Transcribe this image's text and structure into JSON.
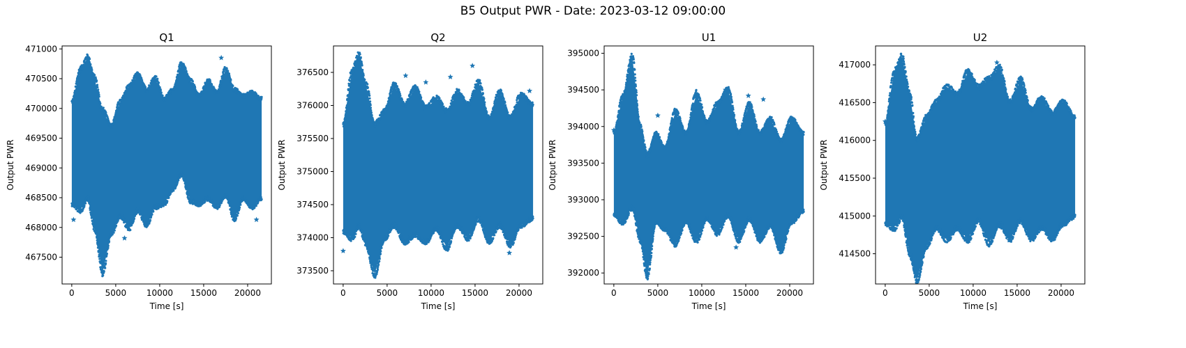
{
  "figure": {
    "title": "B5 Output PWR - Date: 2023-03-12 09:00:00"
  },
  "colors": {
    "series": "#1f77b4",
    "axes": "#000000",
    "background": "#ffffff"
  },
  "chart_data": [
    {
      "type": "scatter",
      "marker": "star",
      "title": "Q1",
      "xlabel": "Time [s]",
      "ylabel": "Output PWR",
      "xlim": [
        -1100,
        22700
      ],
      "ylim": [
        467050,
        471050
      ],
      "xticks": [
        0,
        5000,
        10000,
        15000,
        20000
      ],
      "yticks": [
        467500,
        468000,
        468500,
        469000,
        469500,
        470000,
        470500,
        471000
      ],
      "ytick_labels": [
        "467500",
        "468000",
        "468500",
        "469000",
        "469500",
        "470000",
        "470500",
        "471000"
      ],
      "xtick_labels": [
        "0",
        "5000",
        "10000",
        "15000",
        "20000"
      ],
      "envelope": {
        "x": [
          0,
          1000,
          1800,
          2600,
          3500,
          4500,
          5500,
          6500,
          7500,
          8500,
          9500,
          10500,
          11500,
          12500,
          13500,
          14500,
          15500,
          16500,
          17500,
          18500,
          19500,
          20500,
          21600
        ],
        "upper": [
          470100,
          470650,
          470850,
          470500,
          469950,
          469700,
          470100,
          470350,
          470550,
          470300,
          470500,
          470150,
          470300,
          470750,
          470450,
          470200,
          470450,
          470250,
          470650,
          470300,
          470200,
          470250,
          470150
        ],
        "lower": [
          468400,
          468300,
          468500,
          468000,
          467250,
          467900,
          468200,
          468000,
          468300,
          468050,
          468350,
          468400,
          468650,
          468900,
          468450,
          468400,
          468500,
          468350,
          468550,
          468150,
          468500,
          468350,
          468500
        ]
      },
      "outliers": [
        [
          200,
          468130
        ],
        [
          17000,
          470850
        ],
        [
          6000,
          467820
        ],
        [
          21000,
          468130
        ]
      ]
    },
    {
      "type": "scatter",
      "marker": "star",
      "title": "Q2",
      "xlabel": "Time [s]",
      "ylabel": "Output PWR",
      "xlim": [
        -1100,
        22700
      ],
      "ylim": [
        373300,
        376900
      ],
      "xticks": [
        0,
        5000,
        10000,
        15000,
        20000
      ],
      "yticks": [
        373500,
        374000,
        374500,
        375000,
        375500,
        376000,
        376500
      ],
      "ytick_labels": [
        "373500",
        "374000",
        "374500",
        "375000",
        "375500",
        "376000",
        "376500"
      ],
      "xtick_labels": [
        "0",
        "5000",
        "10000",
        "15000",
        "20000"
      ],
      "envelope": {
        "x": [
          0,
          1000,
          1800,
          2600,
          3600,
          4700,
          5800,
          7000,
          8200,
          9400,
          10600,
          11800,
          13000,
          14200,
          15400,
          16600,
          17800,
          19000,
          20200,
          21600
        ],
        "upper": [
          375700,
          376500,
          376750,
          376300,
          375700,
          375900,
          376300,
          376000,
          376250,
          375950,
          376100,
          375900,
          376200,
          376000,
          376350,
          375800,
          376200,
          375800,
          376150,
          376000
        ],
        "lower": [
          374100,
          374000,
          374200,
          373900,
          373450,
          374000,
          374200,
          373950,
          374050,
          373950,
          374150,
          373850,
          374200,
          374000,
          374300,
          373950,
          374200,
          373900,
          374200,
          374300
        ]
      },
      "outliers": [
        [
          0,
          373800
        ],
        [
          7100,
          376450
        ],
        [
          9400,
          376350
        ],
        [
          12200,
          376430
        ],
        [
          14700,
          376600
        ],
        [
          18900,
          373770
        ],
        [
          21200,
          376220
        ]
      ]
    },
    {
      "type": "scatter",
      "marker": "star",
      "title": "U1",
      "xlabel": "Time [s]",
      "ylabel": "Output PWR",
      "xlim": [
        -1100,
        22700
      ],
      "ylim": [
        391850,
        395100
      ],
      "xticks": [
        0,
        5000,
        10000,
        15000,
        20000
      ],
      "yticks": [
        392000,
        392500,
        393000,
        393500,
        394000,
        394500,
        395000
      ],
      "ytick_labels": [
        "392000",
        "392500",
        "393000",
        "393500",
        "394000",
        "394500",
        "395000"
      ],
      "xtick_labels": [
        "0",
        "5000",
        "10000",
        "15000",
        "20000"
      ],
      "envelope": {
        "x": [
          0,
          1000,
          2100,
          3000,
          3800,
          4800,
          5800,
          7000,
          8200,
          9400,
          10600,
          11800,
          13000,
          14200,
          15400,
          16600,
          17800,
          19000,
          20200,
          21600
        ],
        "upper": [
          393900,
          394400,
          394950,
          394000,
          393600,
          393900,
          393700,
          394200,
          393900,
          394450,
          394050,
          394300,
          394500,
          393900,
          394300,
          393900,
          394100,
          393800,
          394100,
          393900
        ],
        "lower": [
          392800,
          392700,
          392900,
          392450,
          391950,
          392700,
          392600,
          392400,
          392700,
          392450,
          392750,
          392550,
          392800,
          392450,
          392750,
          392450,
          392650,
          392300,
          392700,
          392850
        ]
      },
      "outliers": [
        [
          0,
          393950
        ],
        [
          5000,
          394150
        ],
        [
          12700,
          394500
        ],
        [
          13900,
          392350
        ],
        [
          15300,
          394420
        ],
        [
          17000,
          394370
        ]
      ]
    },
    {
      "type": "scatter",
      "marker": "star",
      "title": "U2",
      "xlabel": "Time [s]",
      "ylabel": "Output PWR",
      "xlim": [
        -1100,
        22700
      ],
      "ylim": [
        414100,
        417250
      ],
      "xticks": [
        0,
        5000,
        10000,
        15000,
        20000
      ],
      "yticks": [
        414500,
        415000,
        415500,
        416000,
        416500,
        417000
      ],
      "ytick_labels": [
        "414500",
        "415000",
        "415500",
        "416000",
        "416500",
        "417000"
      ],
      "xtick_labels": [
        "0",
        "5000",
        "10000",
        "15000",
        "20000"
      ],
      "envelope": {
        "x": [
          0,
          1000,
          1900,
          2800,
          3600,
          4700,
          5800,
          7000,
          8200,
          9400,
          10600,
          11800,
          13000,
          14200,
          15400,
          16600,
          17800,
          19000,
          20200,
          21600
        ],
        "upper": [
          416200,
          416900,
          417100,
          416600,
          416000,
          416300,
          416500,
          416700,
          416600,
          416900,
          416700,
          416800,
          416950,
          416500,
          416800,
          416400,
          416550,
          416350,
          416500,
          416300
        ],
        "lower": [
          414900,
          414850,
          415000,
          414500,
          414150,
          414600,
          414850,
          414700,
          414850,
          414700,
          414950,
          414650,
          414900,
          414700,
          414950,
          414700,
          414850,
          414700,
          414900,
          415000
        ]
      },
      "outliers": [
        [
          0,
          416250
        ],
        [
          12700,
          417030
        ],
        [
          14100,
          414680
        ]
      ]
    }
  ]
}
